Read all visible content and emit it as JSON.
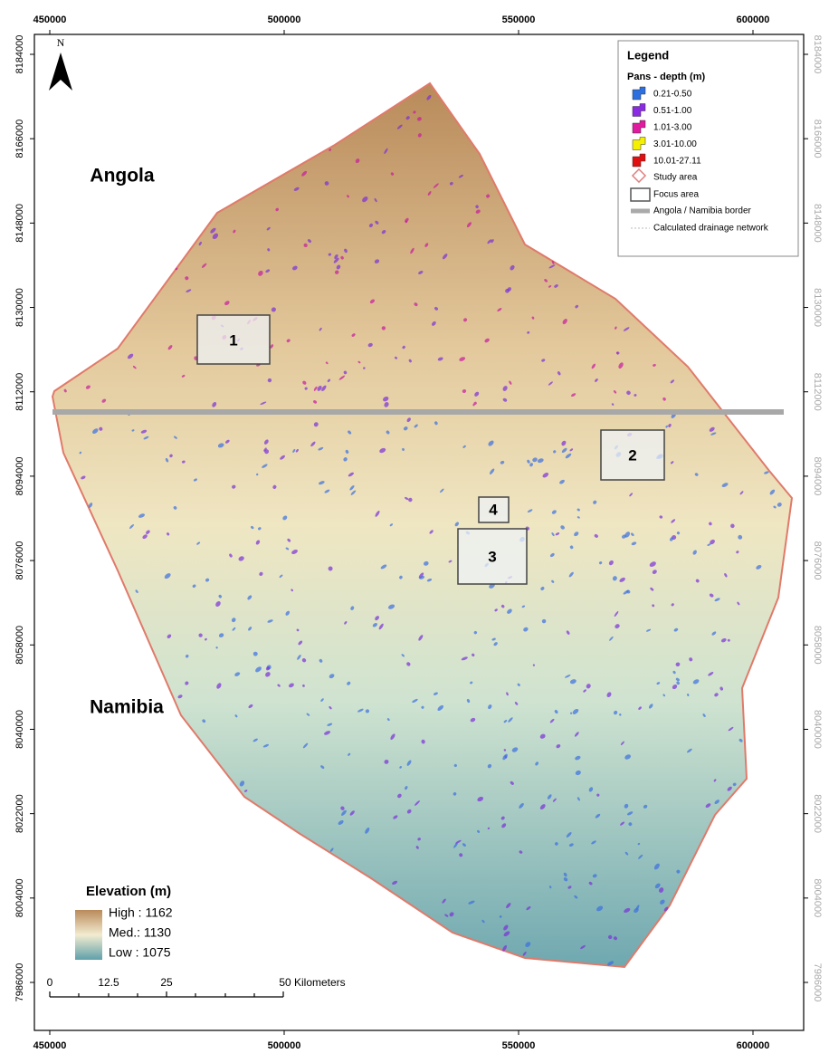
{
  "map": {
    "xticks": [
      450000,
      500000,
      550000,
      600000
    ],
    "yticks": [
      8184000,
      8166000,
      8148000,
      8130000,
      8112000,
      8094000,
      8076000,
      8058000,
      8040000,
      8022000,
      8004000,
      7986000
    ],
    "north": "N",
    "countries": [
      "Angola",
      "Namibia"
    ],
    "legend": {
      "title": "Legend",
      "subtitle": "Pans - depth (m)",
      "items": [
        {
          "label": "0.21-0.50",
          "color": "#2c6fe0"
        },
        {
          "label": "0.51-1.00",
          "color": "#8a2be2"
        },
        {
          "label": "1.01-3.00",
          "color": "#e01ba0"
        },
        {
          "label": "3.01-10.00",
          "color": "#f5f000"
        },
        {
          "label": "10.01-27.11",
          "color": "#e01010"
        }
      ],
      "other": [
        "Study area",
        "Focus area",
        "Angola / Namibia border",
        "Calculated drainage network"
      ]
    },
    "elevation": {
      "title": "Elevation (m)",
      "labels": [
        "High : 1162",
        "Med.: 1130",
        "Low :  1075"
      ]
    },
    "scale": {
      "labels": [
        "0",
        "12.5",
        "25",
        "50 Kilometers"
      ]
    },
    "focus_areas": [
      "1",
      "2",
      "3",
      "4"
    ]
  }
}
